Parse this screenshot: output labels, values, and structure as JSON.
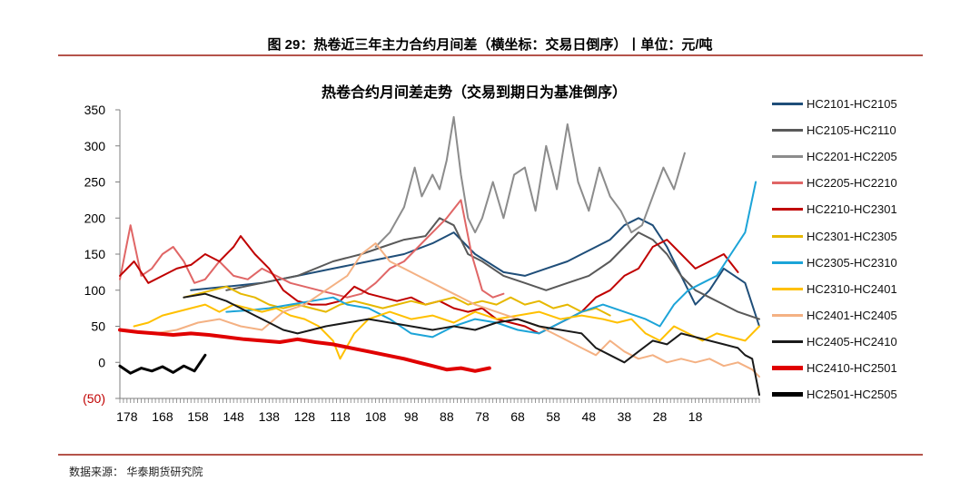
{
  "figure_title": "图 29：热卷近三年主力合约月间差（横坐标：交易日倒序）丨单位：元/吨",
  "source_note": "数据来源：  华泰期货研究院",
  "chart_data": {
    "type": "line",
    "title": "热卷合约月间差走势（交易到期日为基准倒序）",
    "xlabel": "",
    "ylabel": "",
    "x_range": [
      180,
      0
    ],
    "x_ticks": [
      178,
      168,
      158,
      148,
      138,
      128,
      118,
      108,
      98,
      88,
      78,
      68,
      58,
      48,
      38,
      28,
      18
    ],
    "ylim": [
      -50,
      350
    ],
    "y_ticks": [
      {
        "value": 350,
        "label": "350"
      },
      {
        "value": 300,
        "label": "300"
      },
      {
        "value": 250,
        "label": "250"
      },
      {
        "value": 200,
        "label": "200"
      },
      {
        "value": 150,
        "label": "150"
      },
      {
        "value": 100,
        "label": "100"
      },
      {
        "value": 50,
        "label": "50"
      },
      {
        "value": 0,
        "label": "0"
      },
      {
        "value": -50,
        "label": "(50)"
      }
    ],
    "negative_label_color": "#c00000",
    "grid": false,
    "legend_position": "right",
    "series": [
      {
        "name": "HC2101-HC2105",
        "color": "#1f4e79",
        "width": 2,
        "x": [
          160,
          150,
          140,
          130,
          120,
          110,
          100,
          92,
          86,
          80,
          72,
          66,
          60,
          54,
          48,
          42,
          38,
          34,
          30,
          26,
          22,
          18,
          14,
          10,
          4,
          0
        ],
        "y": [
          100,
          105,
          110,
          120,
          130,
          140,
          150,
          165,
          180,
          150,
          125,
          120,
          130,
          140,
          155,
          170,
          190,
          200,
          190,
          160,
          120,
          80,
          100,
          130,
          110,
          50
        ]
      },
      {
        "name": "HC2105-HC2110",
        "color": "#595959",
        "width": 2,
        "x": [
          150,
          140,
          130,
          120,
          112,
          106,
          100,
          94,
          90,
          86,
          82,
          78,
          72,
          66,
          60,
          54,
          48,
          42,
          38,
          34,
          30,
          26,
          22,
          18,
          14,
          10,
          6,
          0
        ],
        "y": [
          100,
          110,
          120,
          140,
          150,
          160,
          170,
          175,
          200,
          190,
          150,
          140,
          120,
          110,
          100,
          110,
          120,
          140,
          160,
          180,
          170,
          150,
          120,
          100,
          90,
          80,
          70,
          60
        ]
      },
      {
        "name": "HC2201-HC2205",
        "color": "#8c8c8c",
        "width": 2,
        "x": [
          108,
          104,
          100,
          97,
          95,
          92,
          90,
          88,
          86,
          84,
          82,
          80,
          78,
          75,
          72,
          69,
          66,
          63,
          60,
          57,
          54,
          51,
          48,
          45,
          42,
          39,
          36,
          33,
          30,
          27,
          24,
          21
        ],
        "y": [
          160,
          180,
          215,
          270,
          230,
          260,
          240,
          280,
          340,
          260,
          200,
          180,
          200,
          250,
          200,
          260,
          270,
          210,
          300,
          240,
          330,
          250,
          210,
          270,
          230,
          210,
          180,
          190,
          230,
          270,
          240,
          290
        ]
      },
      {
        "name": "HC2205-HC2210",
        "color": "#e06666",
        "width": 2,
        "x": [
          180,
          177,
          174,
          171,
          168,
          165,
          162,
          159,
          156,
          152,
          148,
          144,
          140,
          136,
          132,
          128,
          124,
          120,
          116,
          112,
          108,
          104,
          100,
          96,
          92,
          88,
          84,
          81,
          78,
          75,
          72
        ],
        "y": [
          115,
          190,
          120,
          130,
          150,
          160,
          140,
          110,
          115,
          140,
          120,
          115,
          130,
          120,
          110,
          105,
          100,
          95,
          90,
          95,
          110,
          130,
          140,
          160,
          180,
          200,
          225,
          150,
          100,
          90,
          95
        ]
      },
      {
        "name": "HC2210-HC2301",
        "color": "#c00000",
        "width": 2,
        "x": [
          180,
          176,
          172,
          168,
          164,
          160,
          156,
          152,
          148,
          146,
          142,
          138,
          134,
          130,
          126,
          122,
          118,
          114,
          110,
          106,
          102,
          98,
          94,
          90,
          86,
          82,
          78,
          74,
          70,
          66,
          62,
          58,
          54,
          50,
          46,
          42,
          38,
          34,
          30,
          26,
          22,
          18,
          14,
          10,
          6
        ],
        "y": [
          120,
          140,
          110,
          120,
          130,
          135,
          150,
          140,
          160,
          175,
          150,
          130,
          100,
          85,
          80,
          80,
          85,
          105,
          95,
          90,
          85,
          90,
          80,
          85,
          75,
          70,
          75,
          60,
          55,
          50,
          40,
          50,
          60,
          70,
          90,
          100,
          120,
          130,
          160,
          170,
          150,
          130,
          140,
          150,
          125
        ]
      },
      {
        "name": "HC2301-HC2305",
        "color": "#e6b800",
        "width": 2,
        "x": [
          162,
          158,
          154,
          150,
          146,
          142,
          138,
          134,
          130,
          126,
          122,
          118,
          114,
          110,
          106,
          102,
          98,
          94,
          90,
          86,
          82,
          78,
          74,
          70,
          66,
          62,
          58,
          54,
          50,
          46,
          42
        ],
        "y": [
          90,
          95,
          100,
          105,
          95,
          90,
          80,
          75,
          80,
          75,
          70,
          80,
          85,
          80,
          75,
          80,
          85,
          80,
          85,
          90,
          80,
          85,
          80,
          90,
          80,
          85,
          75,
          80,
          70,
          75,
          65
        ]
      },
      {
        "name": "HC2305-HC2310",
        "color": "#1ca4d8",
        "width": 2,
        "x": [
          150,
          144,
          138,
          132,
          126,
          120,
          116,
          110,
          104,
          98,
          92,
          86,
          80,
          74,
          68,
          62,
          56,
          50,
          44,
          38,
          32,
          28,
          24,
          20,
          16,
          12,
          8,
          4,
          1
        ],
        "y": [
          70,
          72,
          75,
          80,
          85,
          90,
          80,
          75,
          60,
          40,
          35,
          50,
          60,
          55,
          45,
          40,
          55,
          70,
          80,
          70,
          60,
          50,
          80,
          100,
          110,
          120,
          150,
          180,
          250
        ]
      },
      {
        "name": "HC2310-HC2401",
        "color": "#ffc000",
        "width": 2,
        "x": [
          176,
          172,
          168,
          164,
          160,
          156,
          152,
          148,
          144,
          140,
          136,
          132,
          128,
          124,
          120,
          118,
          114,
          110,
          104,
          98,
          92,
          86,
          80,
          74,
          68,
          62,
          56,
          50,
          44,
          40,
          36,
          32,
          28,
          24,
          20,
          16,
          12,
          8,
          4,
          0
        ],
        "y": [
          50,
          55,
          65,
          70,
          75,
          80,
          70,
          80,
          75,
          70,
          75,
          65,
          60,
          50,
          30,
          5,
          40,
          60,
          70,
          60,
          65,
          55,
          70,
          60,
          65,
          70,
          60,
          65,
          60,
          55,
          60,
          40,
          30,
          50,
          40,
          30,
          40,
          35,
          30,
          50
        ]
      },
      {
        "name": "HC2401-HC2405",
        "color": "#f4b183",
        "width": 2,
        "x": [
          170,
          164,
          158,
          152,
          146,
          140,
          134,
          128,
          122,
          116,
          112,
          108,
          104,
          100,
          96,
          92,
          88,
          84,
          80,
          74,
          68,
          62,
          56,
          50,
          46,
          42,
          38,
          34,
          30,
          26,
          22,
          18,
          14,
          10,
          6,
          2,
          0
        ],
        "y": [
          40,
          45,
          55,
          60,
          50,
          45,
          70,
          80,
          100,
          120,
          150,
          165,
          140,
          130,
          120,
          110,
          100,
          90,
          80,
          70,
          60,
          50,
          35,
          20,
          10,
          30,
          15,
          5,
          10,
          0,
          5,
          0,
          5,
          -5,
          0,
          -10,
          -20
        ]
      },
      {
        "name": "HC2405-HC2410",
        "color": "#1a1a1a",
        "width": 2,
        "x": [
          162,
          156,
          150,
          146,
          142,
          138,
          134,
          130,
          126,
          122,
          116,
          110,
          104,
          98,
          92,
          86,
          80,
          74,
          68,
          62,
          56,
          50,
          46,
          42,
          38,
          34,
          30,
          26,
          22,
          18,
          14,
          10,
          6,
          4,
          2,
          0
        ],
        "y": [
          90,
          95,
          85,
          75,
          65,
          55,
          45,
          40,
          45,
          50,
          55,
          60,
          55,
          50,
          45,
          50,
          45,
          55,
          60,
          50,
          45,
          40,
          20,
          10,
          0,
          15,
          30,
          25,
          40,
          35,
          30,
          25,
          20,
          10,
          5,
          -45
        ]
      },
      {
        "name": "HC2410-HC2501",
        "color": "#e00000",
        "width": 4,
        "x": [
          180,
          175,
          170,
          165,
          160,
          155,
          150,
          145,
          140,
          135,
          130,
          125,
          120,
          115,
          110,
          105,
          100,
          96,
          92,
          88,
          84,
          80,
          76
        ],
        "y": [
          45,
          42,
          40,
          38,
          40,
          38,
          35,
          32,
          30,
          28,
          32,
          28,
          25,
          20,
          15,
          10,
          5,
          0,
          -5,
          -10,
          -8,
          -12,
          -8
        ]
      },
      {
        "name": "HC2501-HC2505",
        "color": "#000000",
        "width": 3,
        "x": [
          180,
          177,
          174,
          171,
          168,
          165,
          162,
          159,
          156
        ],
        "y": [
          -5,
          -15,
          -8,
          -12,
          -6,
          -14,
          -5,
          -12,
          10
        ]
      }
    ]
  }
}
